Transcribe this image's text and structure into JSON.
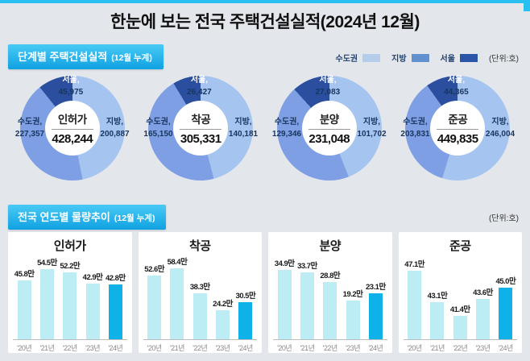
{
  "page": {
    "title": "한눈에 보는 전국 주택건설실적(2024년 12월)"
  },
  "colors": {
    "accent_cyan": "#28c0f1",
    "header_gradient_start": "#49caf5",
    "header_gradient_end": "#10a1e2",
    "legend_sudogwon": "#b3cdeb",
    "legend_jibang": "#6190cf",
    "legend_seoul": "#2b55a7",
    "donut_sudogwon": "#7e9fe3",
    "donut_jibang": "#a6c4f0",
    "donut_seoul": "#2b4f9e",
    "bar": "#bdedf4",
    "bar_highlight": "#0fb2e8"
  },
  "section1": {
    "title": "단계별 주택건설실적",
    "subtitle": "(12월 누계)",
    "unit": "(단위:호)",
    "legend": [
      {
        "label": "수도권",
        "color": "#b3cdeb"
      },
      {
        "label": "지방",
        "color": "#6190cf"
      },
      {
        "label": "서울",
        "color": "#2b55a7"
      }
    ]
  },
  "section2": {
    "title": "전국 연도별 물량추이",
    "subtitle": "(12월 누계)",
    "unit": "(단위:호)"
  },
  "chart_data": [
    {
      "type": "pie",
      "title": "인허가",
      "total": 428244,
      "total_label": "428,244",
      "segments": {
        "seoul": {
          "label": "서울,",
          "value": 45975,
          "display": "45,975"
        },
        "sudogwon": {
          "label": "수도권,",
          "value": 227357,
          "display": "227,357"
        },
        "jibang": {
          "label": "지방,",
          "value": 200887,
          "display": "200,887"
        }
      }
    },
    {
      "type": "pie",
      "title": "착공",
      "total": 305331,
      "total_label": "305,331",
      "segments": {
        "seoul": {
          "label": "서울,",
          "value": 26427,
          "display": "26,427"
        },
        "sudogwon": {
          "label": "수도권,",
          "value": 165150,
          "display": "165,150"
        },
        "jibang": {
          "label": "지방,",
          "value": 140181,
          "display": "140,181"
        }
      }
    },
    {
      "type": "pie",
      "title": "분양",
      "total": 231048,
      "total_label": "231,048",
      "segments": {
        "seoul": {
          "label": "서울,",
          "value": 27083,
          "display": "27,083"
        },
        "sudogwon": {
          "label": "수도권,",
          "value": 129346,
          "display": "129,346"
        },
        "jibang": {
          "label": "지방,",
          "value": 101702,
          "display": "101,702"
        }
      }
    },
    {
      "type": "pie",
      "title": "준공",
      "total": 449835,
      "total_label": "449,835",
      "segments": {
        "seoul": {
          "label": "서울,",
          "value": 44365,
          "display": "44,365"
        },
        "sudogwon": {
          "label": "수도권,",
          "value": 203831,
          "display": "203,831"
        },
        "jibang": {
          "label": "지방,",
          "value": 246004,
          "display": "246,004"
        }
      }
    },
    {
      "type": "bar",
      "title": "인허가",
      "categories": [
        "'20년",
        "'21년",
        "'22년",
        "'23년",
        "'24년"
      ],
      "values": [
        45.8,
        54.5,
        52.2,
        42.9,
        42.8
      ],
      "value_labels": [
        "45.8만",
        "54.5만",
        "52.2만",
        "42.9만",
        "42.8만"
      ],
      "ylim": [
        0,
        62
      ],
      "unit": "만호",
      "highlight_last": true
    },
    {
      "type": "bar",
      "title": "착공",
      "categories": [
        "'20년",
        "'21년",
        "'22년",
        "'23년",
        "'24년"
      ],
      "values": [
        52.6,
        58.4,
        38.3,
        24.2,
        30.5
      ],
      "value_labels": [
        "52.6만",
        "58.4만",
        "38.3만",
        "24.2만",
        "30.5만"
      ],
      "ylim": [
        0,
        66
      ],
      "unit": "만호",
      "highlight_last": true
    },
    {
      "type": "bar",
      "title": "분양",
      "categories": [
        "'20년",
        "'21년",
        "'22년",
        "'23년",
        "'24년"
      ],
      "values": [
        34.9,
        33.7,
        28.8,
        19.2,
        23.1
      ],
      "value_labels": [
        "34.9만",
        "33.7만",
        "28.8만",
        "19.2만",
        "23.1만"
      ],
      "ylim": [
        0,
        40
      ],
      "unit": "만호",
      "highlight_last": true
    },
    {
      "type": "bar",
      "title": "준공",
      "categories": [
        "'20년",
        "'21년",
        "'22년",
        "'23년",
        "'24년"
      ],
      "values": [
        47.1,
        43.1,
        41.4,
        43.6,
        45.0
      ],
      "value_labels": [
        "47.1만",
        "43.1만",
        "41.4만",
        "43.6만",
        "45.0만"
      ],
      "ylim": [
        38.5,
        48.5
      ],
      "unit": "만호",
      "highlight_last": true
    }
  ]
}
